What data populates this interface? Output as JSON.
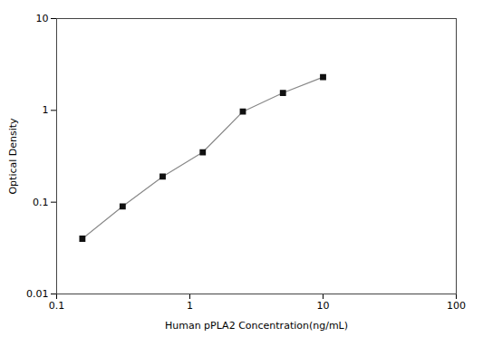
{
  "chart_data": {
    "type": "line",
    "x": [
      0.156,
      0.313,
      0.625,
      1.25,
      2.5,
      5.0,
      10.0
    ],
    "values": [
      0.04,
      0.09,
      0.19,
      0.35,
      0.97,
      1.55,
      2.3
    ],
    "xlabel": "Human pPLA2 Concentration(ng/mL)",
    "ylabel": "Optical Density",
    "xlim": [
      0.1,
      100
    ],
    "ylim": [
      0.01,
      10
    ],
    "xticks": [
      0.1,
      1,
      10,
      100
    ],
    "yticks": [
      0.01,
      0.1,
      1,
      10
    ],
    "log": true,
    "grid": false,
    "color": "#888888",
    "marker": "square"
  }
}
